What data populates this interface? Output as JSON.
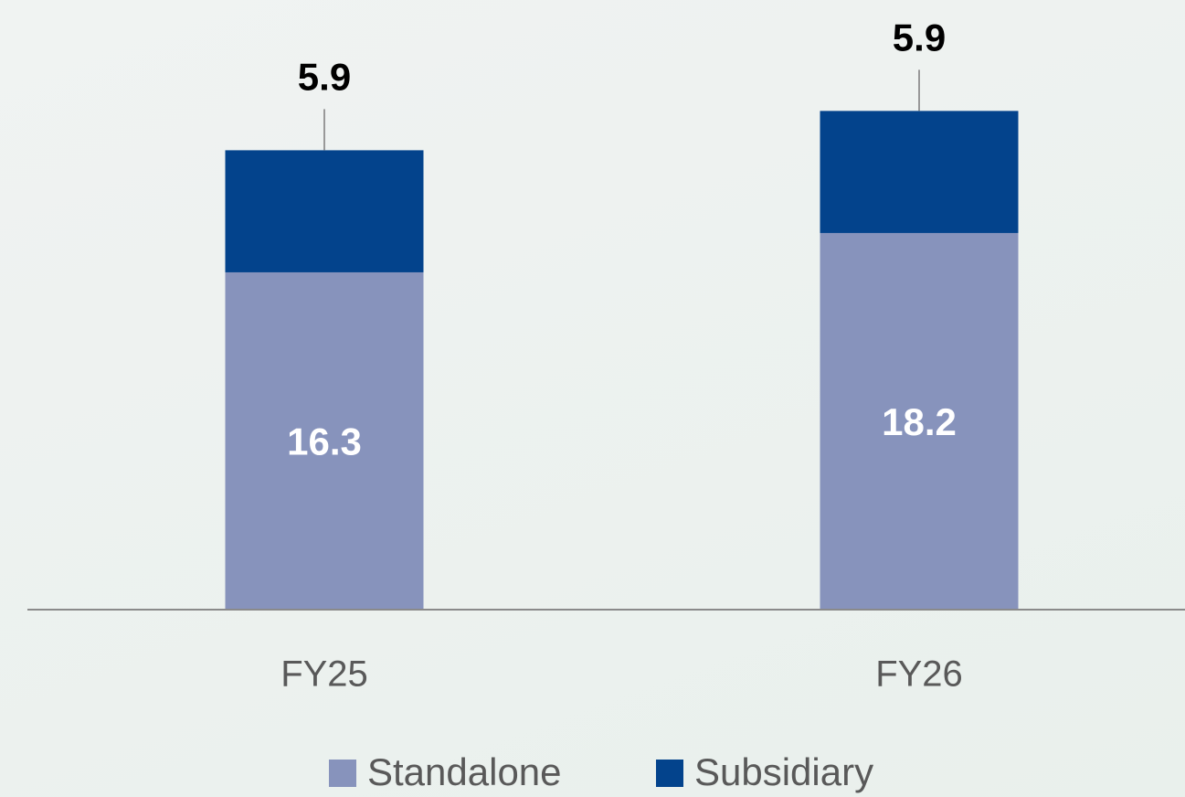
{
  "chart_data": {
    "type": "stacked_bar",
    "categories": [
      "FY25",
      "FY26"
    ],
    "series": [
      {
        "name": "Standalone",
        "color": "#8793bc",
        "values": [
          16.3,
          18.2
        ]
      },
      {
        "name": "Subsidiary",
        "color": "#03438c",
        "values": [
          5.9,
          5.9
        ]
      }
    ],
    "ylim": [
      0,
      25
    ],
    "legend": "bottom"
  }
}
